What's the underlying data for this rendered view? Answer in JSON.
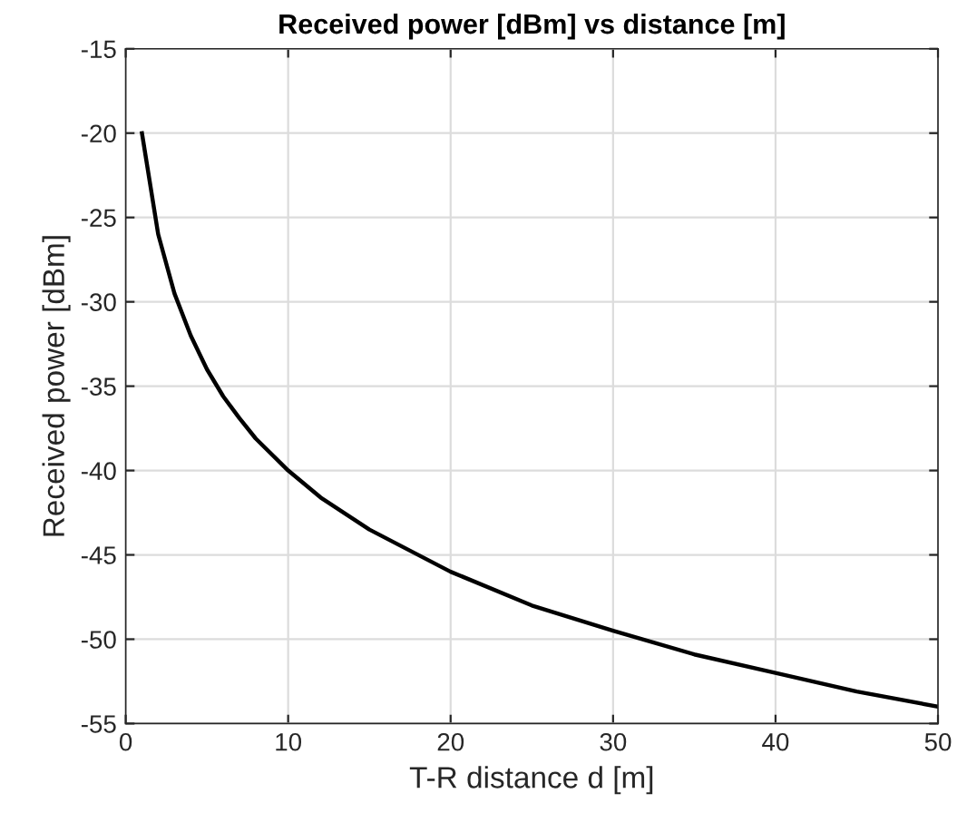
{
  "chart_data": {
    "type": "line",
    "title": "Received power [dBm] vs distance [m]",
    "xlabel": "T-R distance d [m]",
    "ylabel": "Received power [dBm]",
    "x": [
      1,
      2,
      3,
      4,
      5,
      6,
      7,
      8,
      10,
      12,
      15,
      20,
      25,
      30,
      35,
      40,
      45,
      50
    ],
    "series": [
      {
        "color": "#000000",
        "values": [
          -20,
          -26.0,
          -29.5,
          -32.0,
          -34.0,
          -35.6,
          -36.9,
          -38.1,
          -40.0,
          -41.6,
          -43.5,
          -46.0,
          -48.0,
          -49.5,
          -50.9,
          -52.0,
          -53.1,
          -54.0
        ]
      }
    ],
    "xlim": [
      0,
      50
    ],
    "xticks": [
      0,
      10,
      20,
      30,
      40,
      50
    ],
    "ylim": [
      -55,
      -15
    ],
    "yticks": [
      -55,
      -50,
      -45,
      -40,
      -35,
      -30,
      -25,
      -20,
      -15
    ],
    "grid": true,
    "marker": "none",
    "line_style": "solid",
    "legend": false
  }
}
